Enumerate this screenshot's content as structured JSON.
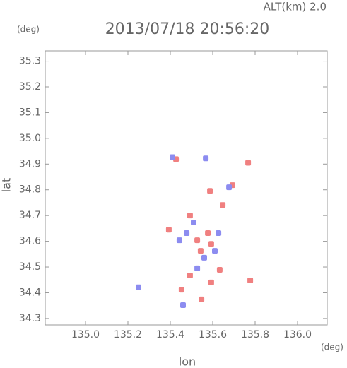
{
  "chart_data": {
    "type": "scatter",
    "title": "2013/07/18 20:56:20",
    "subtitle": "ALT(km) 2.0",
    "x_label": "lon",
    "y_label": "lat",
    "x_unit": "(deg)",
    "y_unit": "(deg)",
    "xlim": [
      134.81,
      136.14
    ],
    "ylim": [
      34.275,
      35.34
    ],
    "xticks": [
      {
        "value": 135,
        "label": "135.0"
      },
      135.2,
      135.4,
      135.6,
      135.8,
      {
        "value": 136,
        "label": "136.0"
      }
    ],
    "yticks": [
      34.3,
      34.4,
      34.5,
      34.6,
      34.7,
      34.8,
      34.9,
      {
        "value": 35,
        "label": "35.0"
      },
      35.1,
      35.2,
      35.3
    ],
    "series": [
      {
        "color": "#f08080",
        "x": [
          135.547,
          135.453,
          135.593,
          135.633,
          135.777,
          135.527,
          135.577,
          135.493,
          135.543,
          135.593,
          135.393,
          135.427,
          135.767,
          135.693,
          135.587,
          135.647,
          135.493
        ],
        "y": [
          34.374,
          34.412,
          34.44,
          34.489,
          34.448,
          34.604,
          34.632,
          34.7,
          34.563,
          34.59,
          34.645,
          34.919,
          34.905,
          34.818,
          34.796,
          34.741,
          34.467
        ]
      },
      {
        "color": "#8c8cf0",
        "x": [
          135.25,
          135.477,
          135.51,
          135.56,
          135.527,
          135.61,
          135.443,
          135.41,
          135.567,
          135.677,
          135.46,
          135.627
        ],
        "y": [
          34.421,
          34.632,
          34.673,
          34.536,
          34.495,
          34.563,
          34.604,
          34.927,
          34.922,
          34.81,
          34.352,
          34.632
        ]
      }
    ]
  }
}
